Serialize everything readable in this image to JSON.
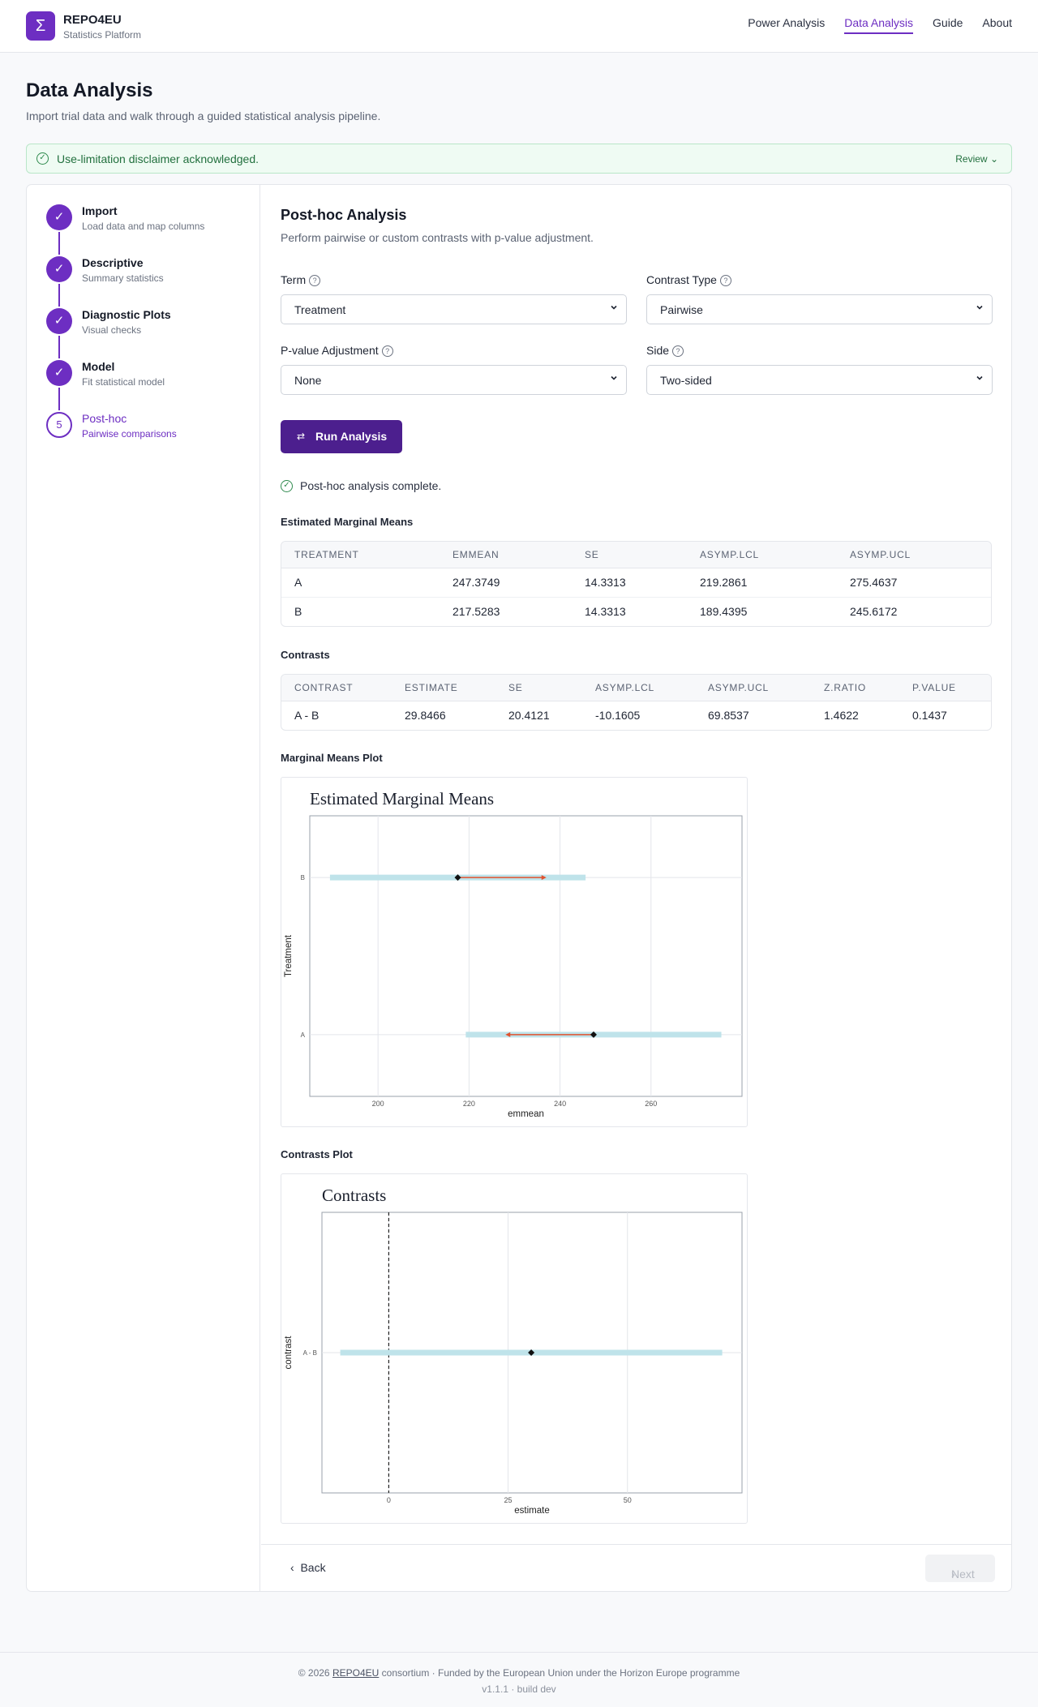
{
  "brand": {
    "name": "REPO4EU",
    "subtitle": "Statistics Platform",
    "logo_glyph": "Σ",
    "color": "#6d2ec2"
  },
  "nav": {
    "items": [
      "Power Analysis",
      "Data Analysis",
      "Guide",
      "About"
    ],
    "active": "Data Analysis"
  },
  "page": {
    "title": "Data Analysis",
    "subtitle": "Import trial data and walk through a guided statistical analysis pipeline."
  },
  "disclaimer": {
    "text": "Use-limitation disclaimer acknowledged.",
    "review_label": "Review"
  },
  "steps": [
    {
      "number": "1",
      "title": "Import",
      "desc": "Load data and map columns",
      "status": "done"
    },
    {
      "number": "2",
      "title": "Descriptive",
      "desc": "Summary statistics",
      "status": "done"
    },
    {
      "number": "3",
      "title": "Diagnostic Plots",
      "desc": "Visual checks",
      "status": "done"
    },
    {
      "number": "4",
      "title": "Model",
      "desc": "Fit statistical model",
      "status": "done"
    },
    {
      "number": "5",
      "title": "Post-hoc",
      "desc": "Pairwise comparisons",
      "status": "current"
    }
  ],
  "posthoc": {
    "title": "Post-hoc Analysis",
    "subtitle": "Perform pairwise or custom contrasts with p-value adjustment.",
    "term": {
      "label": "Term",
      "value": "Treatment"
    },
    "contrast_type": {
      "label": "Contrast Type",
      "value": "Pairwise"
    },
    "p_adjust": {
      "label": "P-value Adjustment",
      "value": "None"
    },
    "side": {
      "label": "Side",
      "value": "Two-sided"
    },
    "run_label": "Run Analysis",
    "status_text": "Post-hoc analysis complete."
  },
  "emm_table": {
    "title": "Estimated Marginal Means",
    "columns": [
      "TREATMENT",
      "EMMEAN",
      "SE",
      "ASYMP.LCL",
      "ASYMP.UCL"
    ],
    "rows": [
      [
        "A",
        "247.3749",
        "14.3313",
        "219.2861",
        "275.4637"
      ],
      [
        "B",
        "217.5283",
        "14.3313",
        "189.4395",
        "245.6172"
      ]
    ]
  },
  "contrast_table": {
    "title": "Contrasts",
    "columns": [
      "CONTRAST",
      "ESTIMATE",
      "SE",
      "ASYMP.LCL",
      "ASYMP.UCL",
      "Z.RATIO",
      "P.VALUE"
    ],
    "rows": [
      [
        "A - B",
        "29.8466",
        "20.4121",
        "-10.1605",
        "69.8537",
        "1.4622",
        "0.1437"
      ]
    ]
  },
  "marginal_plot": {
    "section_title": "Marginal Means Plot"
  },
  "contrasts_plot": {
    "section_title": "Contrasts Plot"
  },
  "chart_data": [
    {
      "type": "scatter",
      "title": "Estimated Marginal Means",
      "xlabel": "emmean",
      "ylabel": "Treatment",
      "categories": [
        "A",
        "B"
      ],
      "x_ticks": [
        200,
        220,
        240,
        260
      ],
      "xlim": [
        185,
        280
      ],
      "points": [
        {
          "category": "A",
          "estimate": 247.3749,
          "lcl": 219.2861,
          "ucl": 275.4637,
          "comparison_arrow_to": 228
        },
        {
          "category": "B",
          "estimate": 217.5283,
          "lcl": 189.4395,
          "ucl": 245.6172,
          "comparison_arrow_to": 237
        }
      ],
      "colors": {
        "ci": "#bfe3ea",
        "arrow": "#e0522f",
        "point": "#111111"
      }
    },
    {
      "type": "scatter",
      "title": "Contrasts",
      "xlabel": "estimate",
      "ylabel": "contrast",
      "categories": [
        "A - B"
      ],
      "x_ticks": [
        0,
        25,
        50
      ],
      "xlim": [
        -14,
        74
      ],
      "reference_line": 0,
      "points": [
        {
          "category": "A - B",
          "estimate": 29.8466,
          "lcl": -10.1605,
          "ucl": 69.8537
        }
      ],
      "colors": {
        "ci": "#bfe3ea",
        "point": "#111111"
      }
    }
  ],
  "nav_buttons": {
    "back": "Back",
    "next": "Next"
  },
  "footer": {
    "copyright": "© 2026",
    "consortium_link": "REPO4EU",
    "line1_rest": "consortium · Funded by the European Union under the Horizon Europe programme",
    "version": "v1.1.1 · build dev"
  }
}
